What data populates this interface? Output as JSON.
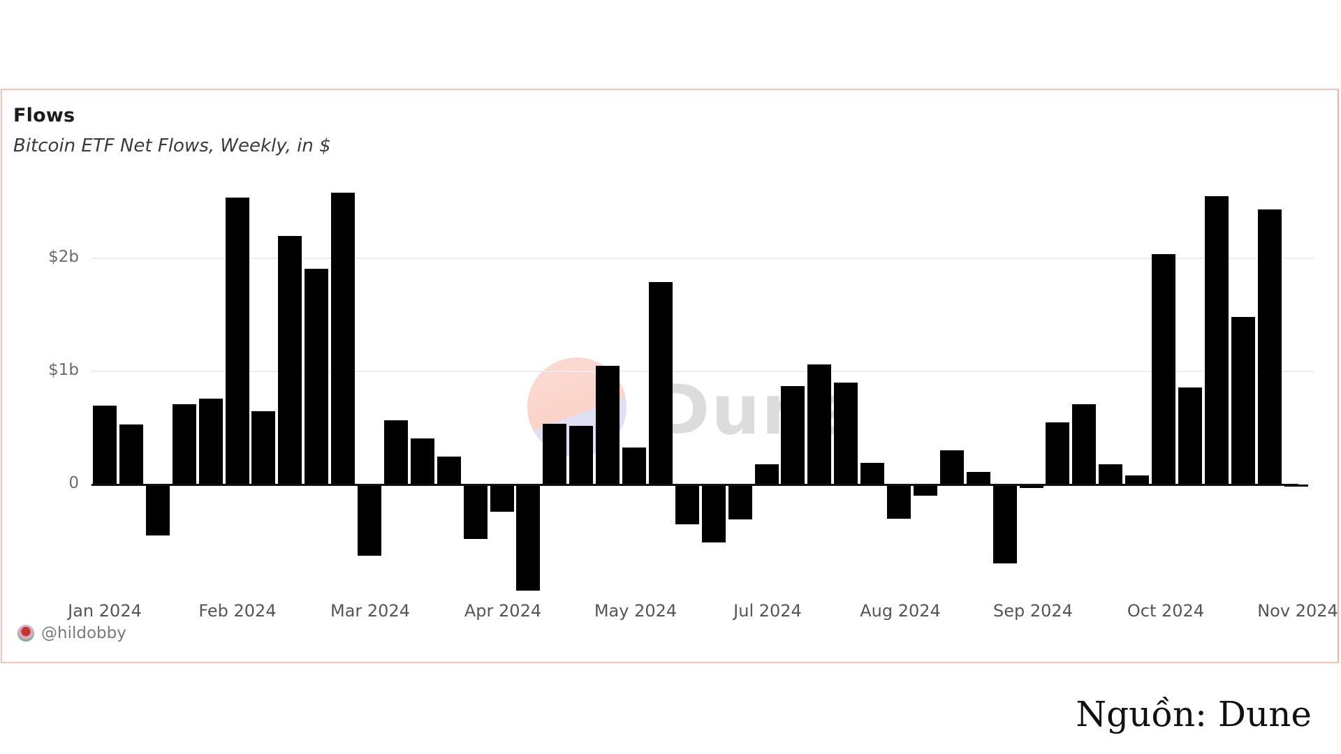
{
  "card": {
    "title": "Flows",
    "subtitle": "Bitcoin ETF Net Flows, Weekly, in $",
    "author": "@hildobby",
    "watermark": "Dune"
  },
  "source_caption": "Nguồn: Dune",
  "colors": {
    "bar": "#000000",
    "card_border": "#f6c3b6",
    "gridline": "#ececec",
    "watermark_circle": "#fbd5cc"
  },
  "chart_data": {
    "type": "bar",
    "title": "Flows",
    "subtitle": "Bitcoin ETF Net Flows, Weekly, in $",
    "xlabel": "",
    "ylabel": "",
    "unit": "billion USD",
    "ylim": [
      -1.0,
      2.65
    ],
    "yticks": [
      {
        "value": 0,
        "label": "0"
      },
      {
        "value": 1,
        "label": "$1b"
      },
      {
        "value": 2,
        "label": "$2b"
      }
    ],
    "grid": true,
    "legend": "none",
    "xtick_labels": [
      "Jan 2024",
      "Feb 2024",
      "Mar 2024",
      "Apr 2024",
      "May 2024",
      "Jul 2024",
      "Aug 2024",
      "Sep 2024",
      "Oct 2024",
      "Nov 2024"
    ],
    "x": [
      1,
      2,
      3,
      4,
      5,
      6,
      7,
      8,
      9,
      10,
      11,
      12,
      13,
      14,
      15,
      16,
      17,
      18,
      19,
      20,
      21,
      22,
      23,
      24,
      25,
      26,
      27,
      28,
      29,
      30,
      31,
      32,
      33,
      34,
      35,
      36,
      37,
      38,
      39,
      40,
      41,
      42,
      43,
      44,
      45,
      46
    ],
    "values": [
      0.7,
      0.53,
      -0.45,
      0.71,
      0.76,
      2.54,
      0.65,
      2.2,
      1.91,
      2.58,
      -0.63,
      0.57,
      0.41,
      0.25,
      -0.48,
      -0.24,
      -0.94,
      0.54,
      0.52,
      1.05,
      0.33,
      1.79,
      -0.35,
      -0.51,
      -0.31,
      0.18,
      0.87,
      1.06,
      0.9,
      0.19,
      -0.3,
      -0.1,
      0.3,
      0.11,
      -0.7,
      -0.03,
      0.55,
      0.71,
      0.18,
      0.08,
      2.04,
      0.86,
      2.55,
      1.48,
      2.43,
      -0.02
    ]
  }
}
